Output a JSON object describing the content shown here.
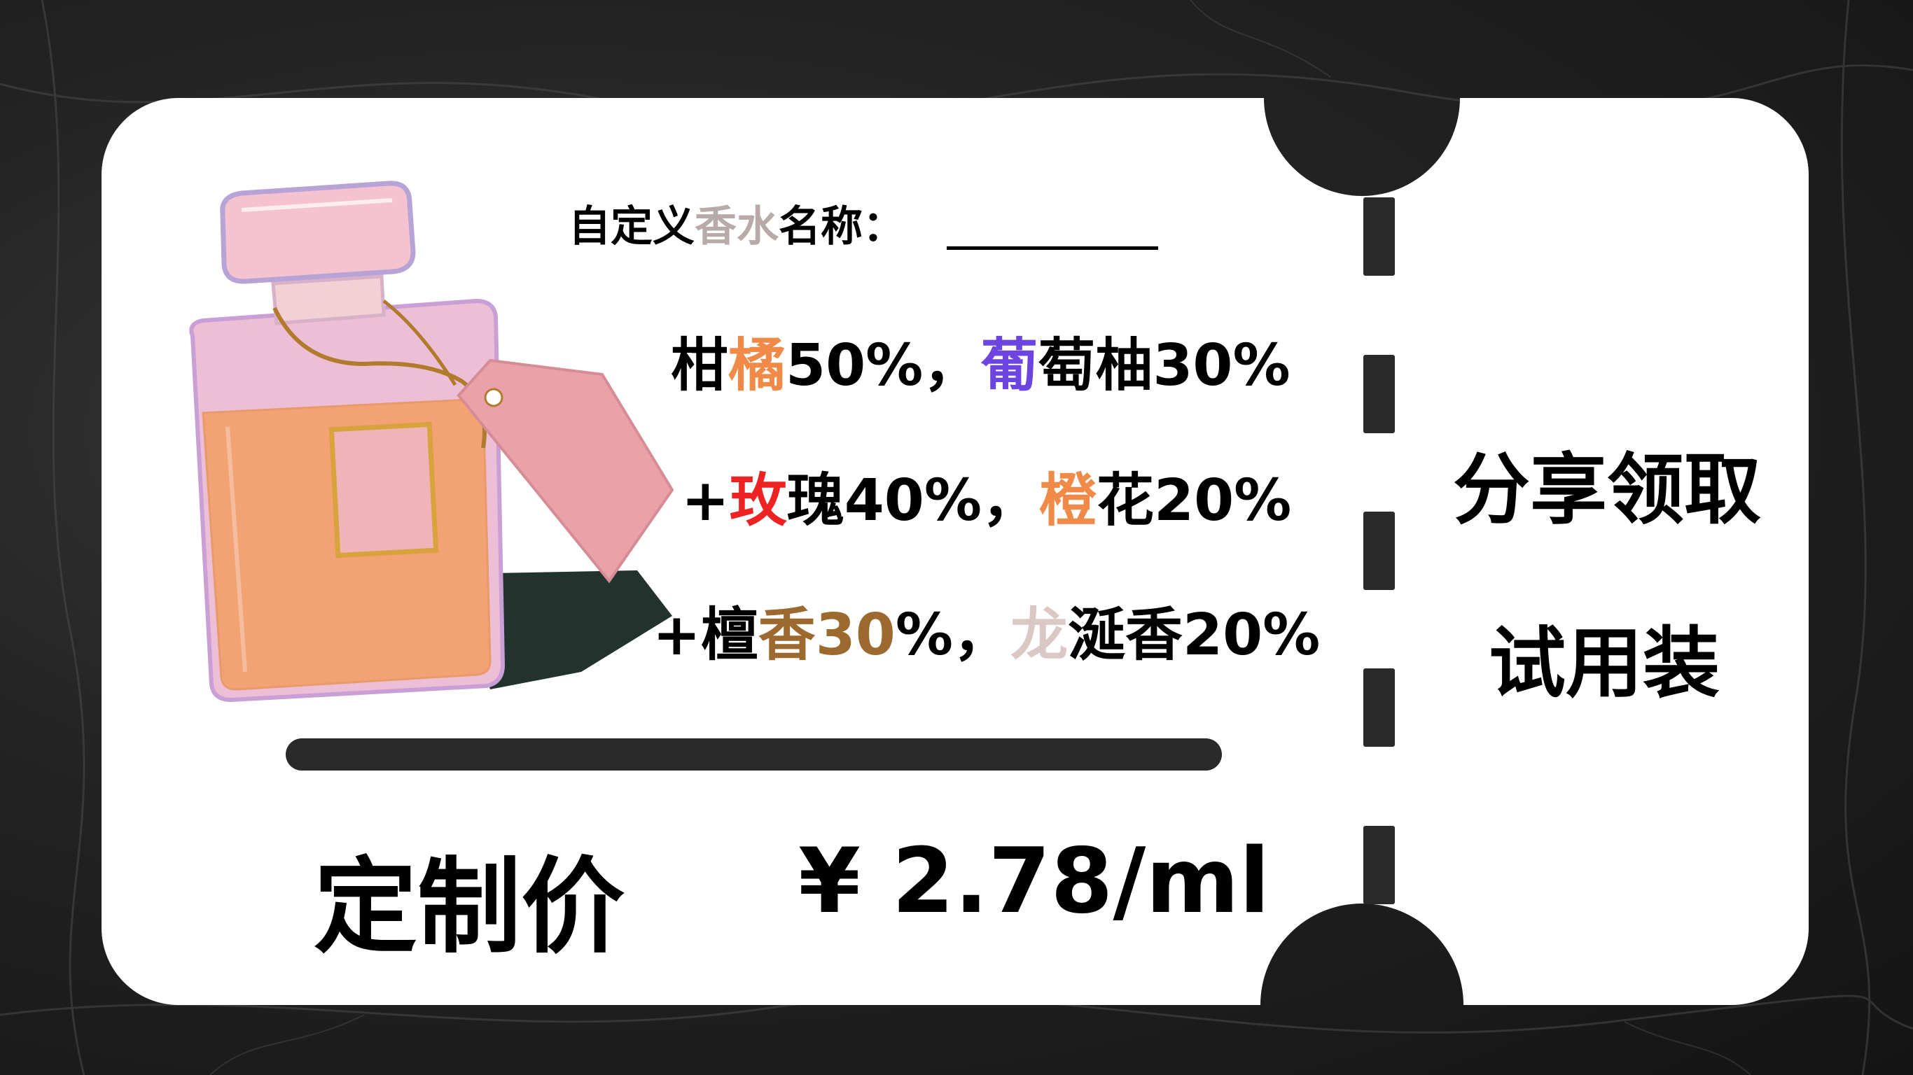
{
  "card": {
    "name_prefix": "自定义",
    "name_highlight": "香水",
    "name_suffix": "名称："
  },
  "ingredients": [
    {
      "segments": [
        {
          "text": "柑",
          "color": ""
        },
        {
          "text": "橘",
          "color": "#f08a48"
        },
        {
          "text": "50%，",
          "color": ""
        },
        {
          "text": "葡",
          "color": "#6c44e0"
        },
        {
          "text": "萄柚30%",
          "color": ""
        }
      ]
    },
    {
      "segments": [
        {
          "text": "+",
          "color": ""
        },
        {
          "text": "玫",
          "color": "#ee2222"
        },
        {
          "text": "瑰40%，",
          "color": ""
        },
        {
          "text": "橙",
          "color": "#f08a48"
        },
        {
          "text": "花20%",
          "color": ""
        }
      ]
    },
    {
      "segments": [
        {
          "text": "+檀",
          "color": ""
        },
        {
          "text": "香30",
          "color": "#9c6a2e"
        },
        {
          "text": "%，",
          "color": ""
        },
        {
          "text": "龙",
          "color": "#d9c8c4"
        },
        {
          "text": "涎香20%",
          "color": ""
        }
      ]
    }
  ],
  "side": {
    "line1": "分享领取",
    "line2": "试用装"
  },
  "price": {
    "label": "定制价",
    "value": "¥ 2.78/ml"
  },
  "colors": {
    "card_background": "#ffffff",
    "page_background": "#1e1e1e",
    "perfume_liquid": "#f3a273",
    "perfume_glass": "#ecbfd6",
    "tag": "#e8a2a8",
    "string": "#b07b2c"
  },
  "icons": {
    "perfume": "perfume-bottle-illustration"
  }
}
